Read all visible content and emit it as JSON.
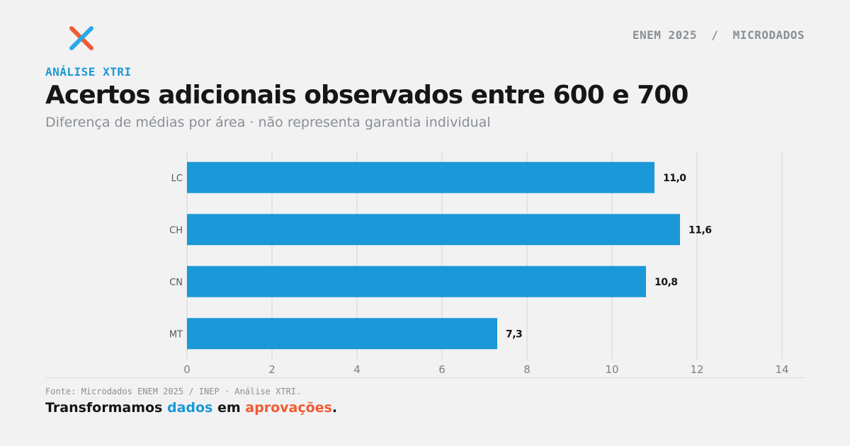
{
  "header": {
    "kicker": "ENEM 2025  /  MICRODADOS",
    "eyebrow": "ANÁLISE XTRI",
    "title": "Acertos adicionais observados entre 600 e 700",
    "subtitle": "Diferença de médias por área · não representa garantia individual"
  },
  "footer": {
    "source": "Fonte: Microdados ENEM 2025 / INEP · Análise XTRI.",
    "tagline_part1": "Transformamos ",
    "tagline_word1": "dados",
    "tagline_part2": " em ",
    "tagline_word2": "aprovações",
    "tagline_end": "."
  },
  "colors": {
    "bar": "#1a98d7",
    "accent_blue": "#1a98d7",
    "accent_red": "#f05a32"
  },
  "logo": {
    "icon": "x-logo-icon"
  },
  "chart_data": {
    "type": "bar",
    "orientation": "horizontal",
    "categories": [
      "LC",
      "CH",
      "CN",
      "MT"
    ],
    "values": [
      11.0,
      11.6,
      10.8,
      7.3
    ],
    "value_labels": [
      "11,0",
      "11,6",
      "10,8",
      "7,3"
    ],
    "xlim": [
      0,
      14
    ],
    "xticks": [
      0,
      2,
      4,
      6,
      8,
      10,
      12,
      14
    ],
    "grid": "vertical"
  }
}
